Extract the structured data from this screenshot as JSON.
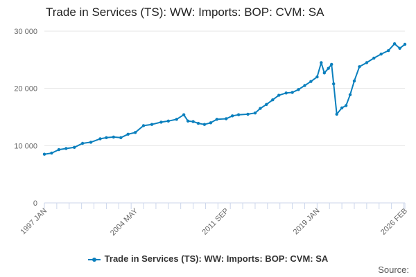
{
  "chart_data": {
    "type": "line",
    "title": "Trade in Services (TS): WW: Imports: BOP: CVM: SA",
    "xlabel": "",
    "ylabel": "",
    "x_range": [
      "1997 JAN",
      "2026 FEB"
    ],
    "x_tick_labels": [
      "1997 JAN",
      "2004 MAY",
      "2011 SEP",
      "2019 JAN",
      "2026 FEB"
    ],
    "y_ticks": [
      0,
      10000,
      20000,
      30000
    ],
    "y_tick_labels": [
      "0",
      "10 000",
      "20 000",
      "30 000"
    ],
    "ylim": [
      0,
      30000
    ],
    "grid": "horizontal",
    "legend_position": "bottom",
    "colors": {
      "series": "#0a7fbd",
      "grid": "#e6e6e6",
      "axis": "#ccd6eb",
      "tick_text": "#666666"
    },
    "series": [
      {
        "name": "Trade in Services (TS): WW: Imports: BOP: CVM: SA",
        "x": [
          "1997 JAN",
          "1997 AUG",
          "1998 MAR",
          "1998 OCT",
          "1999 JUN",
          "2000 FEB",
          "2000 OCT",
          "2001 JUL",
          "2002 JAN",
          "2002 AUG",
          "2003 MAR",
          "2003 OCT",
          "2004 MAY",
          "2005 JAN",
          "2005 SEP",
          "2006 JUN",
          "2007 JAN",
          "2007 SEP",
          "2008 APR",
          "2008 AUG",
          "2009 JAN",
          "2009 JUN",
          "2009 DEC",
          "2010 JUN",
          "2010 DEC",
          "2011 SEP",
          "2012 MAR",
          "2012 SEP",
          "2013 JUN",
          "2014 JAN",
          "2014 JUN",
          "2014 DEC",
          "2015 JUN",
          "2015 DEC",
          "2016 JUL",
          "2017 JAN",
          "2017 JUL",
          "2018 JAN",
          "2018 JUL",
          "2019 JAN",
          "2019 MAY",
          "2019 AUG",
          "2019 DEC",
          "2020 MAR",
          "2020 MAY",
          "2020 AUG",
          "2021 JAN",
          "2021 MAY",
          "2021 SEP",
          "2022 JAN",
          "2022 JUN",
          "2023 JAN",
          "2023 AUG",
          "2024 MAR",
          "2024 OCT",
          "2025 APR",
          "2025 SEP",
          "2026 FEB"
        ],
        "values": [
          8500,
          8700,
          9300,
          9500,
          9700,
          10400,
          10600,
          11200,
          11400,
          11500,
          11400,
          12000,
          12300,
          13500,
          13700,
          14100,
          14300,
          14600,
          15400,
          14300,
          14200,
          13900,
          13700,
          14000,
          14600,
          14700,
          15200,
          15400,
          15500,
          15700,
          16500,
          17200,
          18000,
          18800,
          19200,
          19300,
          19800,
          20500,
          21200,
          22000,
          24500,
          22700,
          23500,
          24200,
          20800,
          15500,
          16600,
          17000,
          18900,
          21300,
          23800,
          24500,
          25300,
          26000,
          26600,
          27800,
          27000,
          27700
        ]
      }
    ]
  },
  "source_label": "Source:"
}
